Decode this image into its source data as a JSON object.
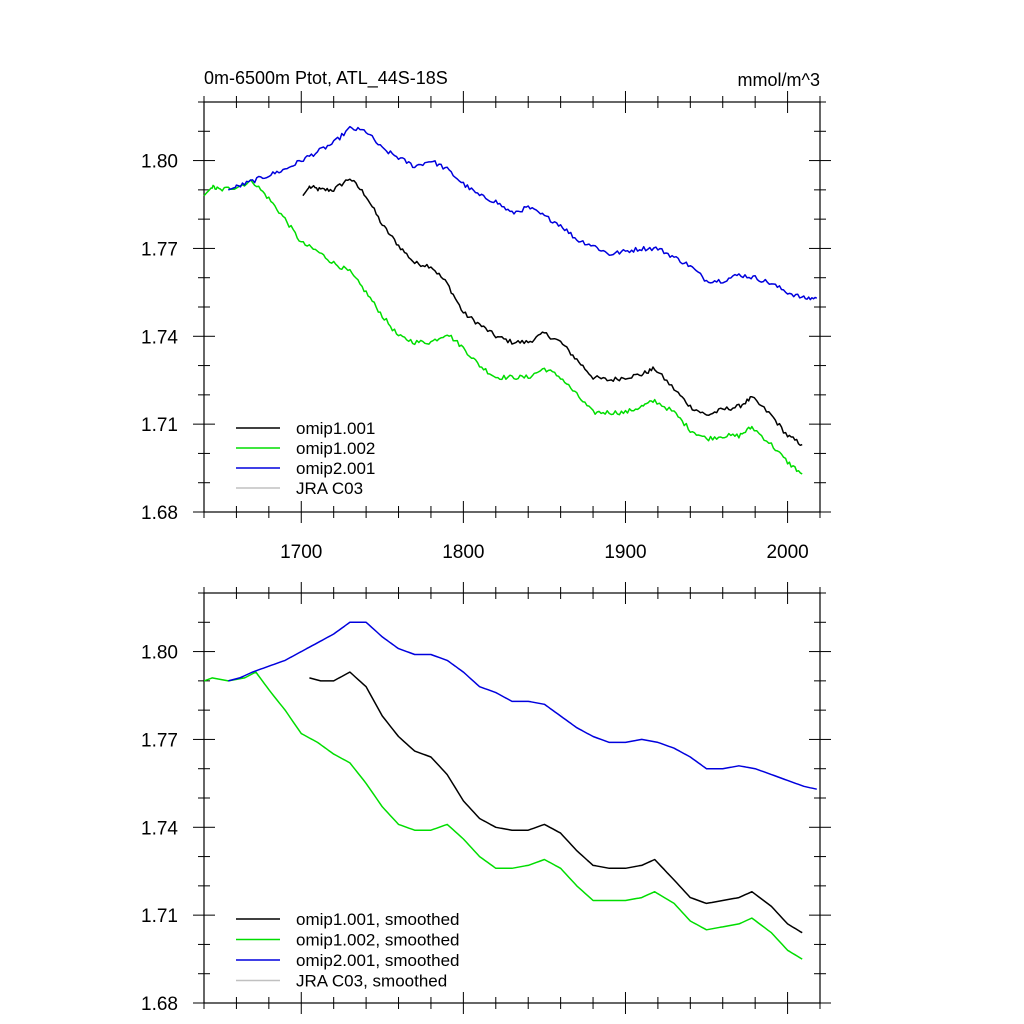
{
  "chart_data": [
    {
      "type": "line",
      "title": "0m-6500m Ptot, ATL_44S-18S",
      "units": "mmol/m^3",
      "xlim": [
        1640,
        2020
      ],
      "ylim": [
        1.68,
        1.82
      ],
      "xticks": [
        1700,
        1800,
        1900,
        2000
      ],
      "xtick_labels": [
        "1700",
        "1800",
        "1900",
        "2000"
      ],
      "yticks": [
        1.68,
        1.71,
        1.74,
        1.77,
        1.8
      ],
      "ytick_labels": [
        "1.68",
        "1.71",
        "1.74",
        "1.77",
        "1.80"
      ],
      "legend_position": "bottom-left",
      "noisy": true,
      "series": [
        {
          "name": "omip1.001",
          "color": "#000000",
          "x": [
            1701,
            1705,
            1712,
            1720,
            1730,
            1740,
            1750,
            1760,
            1770,
            1780,
            1790,
            1800,
            1810,
            1820,
            1830,
            1840,
            1850,
            1860,
            1870,
            1880,
            1890,
            1900,
            1910,
            1918,
            1930,
            1940,
            1950,
            1960,
            1970,
            1978,
            1990,
            2000,
            2009
          ],
          "y": [
            1.788,
            1.791,
            1.79,
            1.79,
            1.794,
            1.788,
            1.778,
            1.771,
            1.765,
            1.764,
            1.758,
            1.748,
            1.744,
            1.74,
            1.738,
            1.738,
            1.741,
            1.738,
            1.732,
            1.726,
            1.725,
            1.726,
            1.727,
            1.729,
            1.722,
            1.716,
            1.713,
            1.715,
            1.716,
            1.719,
            1.713,
            1.706,
            1.703
          ]
        },
        {
          "name": "omip1.002",
          "color": "#00dd00",
          "x": [
            1640,
            1645,
            1650,
            1660,
            1670,
            1680,
            1690,
            1700,
            1710,
            1720,
            1730,
            1740,
            1750,
            1760,
            1770,
            1780,
            1790,
            1800,
            1810,
            1820,
            1830,
            1840,
            1850,
            1860,
            1870,
            1880,
            1890,
            1900,
            1910,
            1918,
            1930,
            1940,
            1950,
            1960,
            1970,
            1978,
            1990,
            2000,
            2009
          ],
          "y": [
            1.788,
            1.791,
            1.79,
            1.791,
            1.793,
            1.787,
            1.78,
            1.772,
            1.769,
            1.765,
            1.762,
            1.755,
            1.747,
            1.74,
            1.738,
            1.738,
            1.741,
            1.736,
            1.73,
            1.726,
            1.726,
            1.726,
            1.729,
            1.726,
            1.72,
            1.714,
            1.714,
            1.714,
            1.716,
            1.718,
            1.714,
            1.708,
            1.705,
            1.706,
            1.706,
            1.709,
            1.703,
            1.697,
            1.693
          ]
        },
        {
          "name": "omip2.001",
          "color": "#0000dd",
          "x": [
            1655,
            1660,
            1670,
            1680,
            1690,
            1700,
            1710,
            1720,
            1730,
            1740,
            1750,
            1760,
            1770,
            1780,
            1790,
            1800,
            1810,
            1820,
            1830,
            1840,
            1850,
            1860,
            1870,
            1880,
            1890,
            1900,
            1910,
            1920,
            1930,
            1940,
            1950,
            1960,
            1970,
            1980,
            1990,
            2000,
            2010,
            2018
          ],
          "y": [
            1.79,
            1.791,
            1.793,
            1.795,
            1.797,
            1.8,
            1.803,
            1.806,
            1.811,
            1.81,
            1.804,
            1.801,
            1.798,
            1.8,
            1.797,
            1.792,
            1.788,
            1.786,
            1.782,
            1.784,
            1.781,
            1.778,
            1.773,
            1.771,
            1.768,
            1.769,
            1.77,
            1.77,
            1.767,
            1.764,
            1.759,
            1.759,
            1.761,
            1.76,
            1.758,
            1.755,
            1.753,
            1.753
          ]
        },
        {
          "name": "JRA C03",
          "color": "#c0c0c0",
          "x": [],
          "y": []
        }
      ]
    },
    {
      "type": "line",
      "xlim": [
        1640,
        2020
      ],
      "ylim": [
        1.68,
        1.82
      ],
      "xticks": [
        1700,
        1800,
        1900,
        2000
      ],
      "xtick_labels": [],
      "yticks": [
        1.68,
        1.71,
        1.74,
        1.77,
        1.8
      ],
      "ytick_labels": [
        "1.68",
        "1.71",
        "1.74",
        "1.77",
        "1.80"
      ],
      "legend_position": "bottom-left",
      "noisy": false,
      "series": [
        {
          "name": "omip1.001, smoothed",
          "color": "#000000",
          "x": [
            1705,
            1712,
            1720,
            1730,
            1740,
            1750,
            1760,
            1770,
            1780,
            1790,
            1800,
            1810,
            1820,
            1830,
            1840,
            1850,
            1860,
            1870,
            1880,
            1890,
            1900,
            1910,
            1918,
            1930,
            1940,
            1950,
            1960,
            1970,
            1978,
            1990,
            2000,
            2009
          ],
          "y": [
            1.791,
            1.79,
            1.79,
            1.793,
            1.788,
            1.778,
            1.771,
            1.766,
            1.764,
            1.758,
            1.749,
            1.743,
            1.74,
            1.739,
            1.739,
            1.741,
            1.738,
            1.732,
            1.727,
            1.726,
            1.726,
            1.727,
            1.729,
            1.722,
            1.716,
            1.714,
            1.715,
            1.716,
            1.718,
            1.713,
            1.707,
            1.704
          ]
        },
        {
          "name": "omip1.002, smoothed",
          "color": "#00dd00",
          "x": [
            1640,
            1645,
            1655,
            1665,
            1672,
            1680,
            1690,
            1700,
            1710,
            1720,
            1730,
            1740,
            1750,
            1760,
            1770,
            1780,
            1790,
            1800,
            1810,
            1820,
            1830,
            1840,
            1850,
            1860,
            1870,
            1880,
            1890,
            1900,
            1910,
            1918,
            1930,
            1940,
            1950,
            1960,
            1970,
            1978,
            1990,
            2000,
            2009
          ],
          "y": [
            1.79,
            1.791,
            1.79,
            1.791,
            1.793,
            1.787,
            1.78,
            1.772,
            1.769,
            1.765,
            1.762,
            1.755,
            1.747,
            1.741,
            1.739,
            1.739,
            1.741,
            1.736,
            1.73,
            1.726,
            1.726,
            1.727,
            1.729,
            1.726,
            1.72,
            1.715,
            1.715,
            1.715,
            1.716,
            1.718,
            1.714,
            1.708,
            1.705,
            1.706,
            1.707,
            1.709,
            1.704,
            1.698,
            1.695
          ]
        },
        {
          "name": "omip2.001, smoothed",
          "color": "#0000dd",
          "x": [
            1655,
            1662,
            1670,
            1680,
            1690,
            1700,
            1710,
            1720,
            1730,
            1740,
            1750,
            1760,
            1770,
            1780,
            1790,
            1800,
            1810,
            1820,
            1830,
            1840,
            1850,
            1860,
            1870,
            1880,
            1890,
            1900,
            1910,
            1920,
            1930,
            1940,
            1950,
            1960,
            1970,
            1980,
            1990,
            2000,
            2010,
            2018
          ],
          "y": [
            1.79,
            1.791,
            1.793,
            1.795,
            1.797,
            1.8,
            1.803,
            1.806,
            1.81,
            1.81,
            1.805,
            1.801,
            1.799,
            1.799,
            1.797,
            1.793,
            1.788,
            1.786,
            1.783,
            1.783,
            1.782,
            1.778,
            1.774,
            1.771,
            1.769,
            1.769,
            1.77,
            1.769,
            1.767,
            1.764,
            1.76,
            1.76,
            1.761,
            1.76,
            1.758,
            1.756,
            1.754,
            1.753
          ]
        },
        {
          "name": "JRA C03, smoothed",
          "color": "#c0c0c0",
          "x": [],
          "y": []
        }
      ]
    }
  ]
}
